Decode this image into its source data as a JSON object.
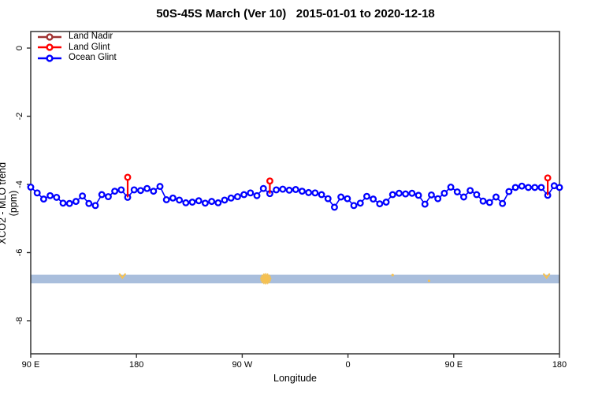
{
  "chart_data": {
    "type": "line",
    "title": "50S-45S March (Ver 10)   2015-01-01 to 2020-12-18",
    "xlabel": "Longitude",
    "ylabel": "XCO2 - MLO trend (ppm)",
    "background": "#FFFFFF",
    "frame_color": "#333333",
    "grid": false,
    "legend_position": "top-left",
    "x_axis": {
      "range_deg": [
        0,
        450
      ],
      "tick_positions_deg": [
        0,
        90,
        180,
        270,
        360,
        450
      ],
      "tick_labels": [
        "90 E",
        "180",
        "90 W",
        "0",
        "90 E",
        "180"
      ]
    },
    "y_axis": {
      "range": [
        -8.97,
        0.49
      ],
      "tick_values": [
        0,
        -2,
        -4,
        -6,
        -8
      ],
      "tick_labels": [
        "0",
        "-2",
        "-4",
        "-6",
        "-8"
      ]
    },
    "series": [
      {
        "name": "Land Nadir",
        "color": "#A03232",
        "marker": "open-circle",
        "points": []
      },
      {
        "name": "Land Glint",
        "color": "#FF0000",
        "marker": "open-circle",
        "points": [
          {
            "x_deg": 82.5,
            "y": -3.79,
            "stem_to": -4.38
          },
          {
            "x_deg": 203.5,
            "y": -3.9,
            "stem_to": -4.27
          },
          {
            "x_deg": 440.0,
            "y": -3.81,
            "stem_to": -4.32
          }
        ]
      },
      {
        "name": "Ocean Glint",
        "color": "#0000FF",
        "marker": "open-circle",
        "x_deg": [
          0,
          5.5,
          11,
          16.5,
          22,
          27.5,
          33,
          38.5,
          44,
          49.5,
          55,
          60.5,
          66,
          71.5,
          77,
          82.5,
          88,
          93.5,
          99,
          104.5,
          110,
          115.5,
          121,
          126.5,
          132,
          137.5,
          143,
          148.5,
          154,
          159.5,
          165,
          170.5,
          176,
          181.5,
          187,
          192.5,
          198,
          203.5,
          209,
          214.5,
          220,
          225.5,
          231,
          236.5,
          242,
          247.5,
          253,
          258.5,
          264,
          269.5,
          275,
          280.5,
          286,
          291.5,
          297,
          302.5,
          308,
          313.5,
          319,
          324.5,
          330,
          335.5,
          341,
          346.5,
          352,
          357.5,
          363,
          368.5,
          374,
          379.5,
          385,
          390.5,
          396,
          401.5,
          407,
          412.5,
          418,
          423.5,
          429,
          434.5,
          440,
          445.5,
          450
        ],
        "y": [
          -4.08,
          -4.25,
          -4.43,
          -4.33,
          -4.38,
          -4.55,
          -4.56,
          -4.5,
          -4.34,
          -4.56,
          -4.62,
          -4.3,
          -4.36,
          -4.2,
          -4.16,
          -4.38,
          -4.16,
          -4.18,
          -4.12,
          -4.2,
          -4.06,
          -4.45,
          -4.4,
          -4.46,
          -4.54,
          -4.52,
          -4.48,
          -4.55,
          -4.5,
          -4.54,
          -4.46,
          -4.4,
          -4.36,
          -4.3,
          -4.25,
          -4.33,
          -4.12,
          -4.27,
          -4.16,
          -4.14,
          -4.17,
          -4.15,
          -4.2,
          -4.24,
          -4.25,
          -4.3,
          -4.42,
          -4.67,
          -4.37,
          -4.42,
          -4.62,
          -4.55,
          -4.35,
          -4.43,
          -4.57,
          -4.52,
          -4.3,
          -4.26,
          -4.28,
          -4.26,
          -4.32,
          -4.58,
          -4.31,
          -4.42,
          -4.26,
          -4.08,
          -4.22,
          -4.37,
          -4.18,
          -4.3,
          -4.49,
          -4.53,
          -4.37,
          -4.56,
          -4.21,
          -4.09,
          -4.05,
          -4.09,
          -4.09,
          -4.09,
          -4.32,
          -4.04,
          -4.09
        ]
      }
    ],
    "band": {
      "color": "#A9BEDC",
      "y_top": -6.65,
      "y_bottom": -6.9,
      "x_deg_from": 0,
      "x_deg_to": 450
    },
    "band_marks": [
      {
        "x_deg": 78,
        "y": -6.68,
        "shape": "chevron",
        "color": "#F5C152"
      },
      {
        "x_deg": 200,
        "y": -6.77,
        "shape": "asterisk",
        "color": "#F5C152"
      },
      {
        "x_deg": 308,
        "y": -6.66,
        "shape": "dot",
        "color": "#F5C152"
      },
      {
        "x_deg": 339,
        "y": -6.83,
        "shape": "dot",
        "color": "#F5C152"
      },
      {
        "x_deg": 439,
        "y": -6.68,
        "shape": "chevron",
        "color": "#F5C152"
      }
    ]
  }
}
